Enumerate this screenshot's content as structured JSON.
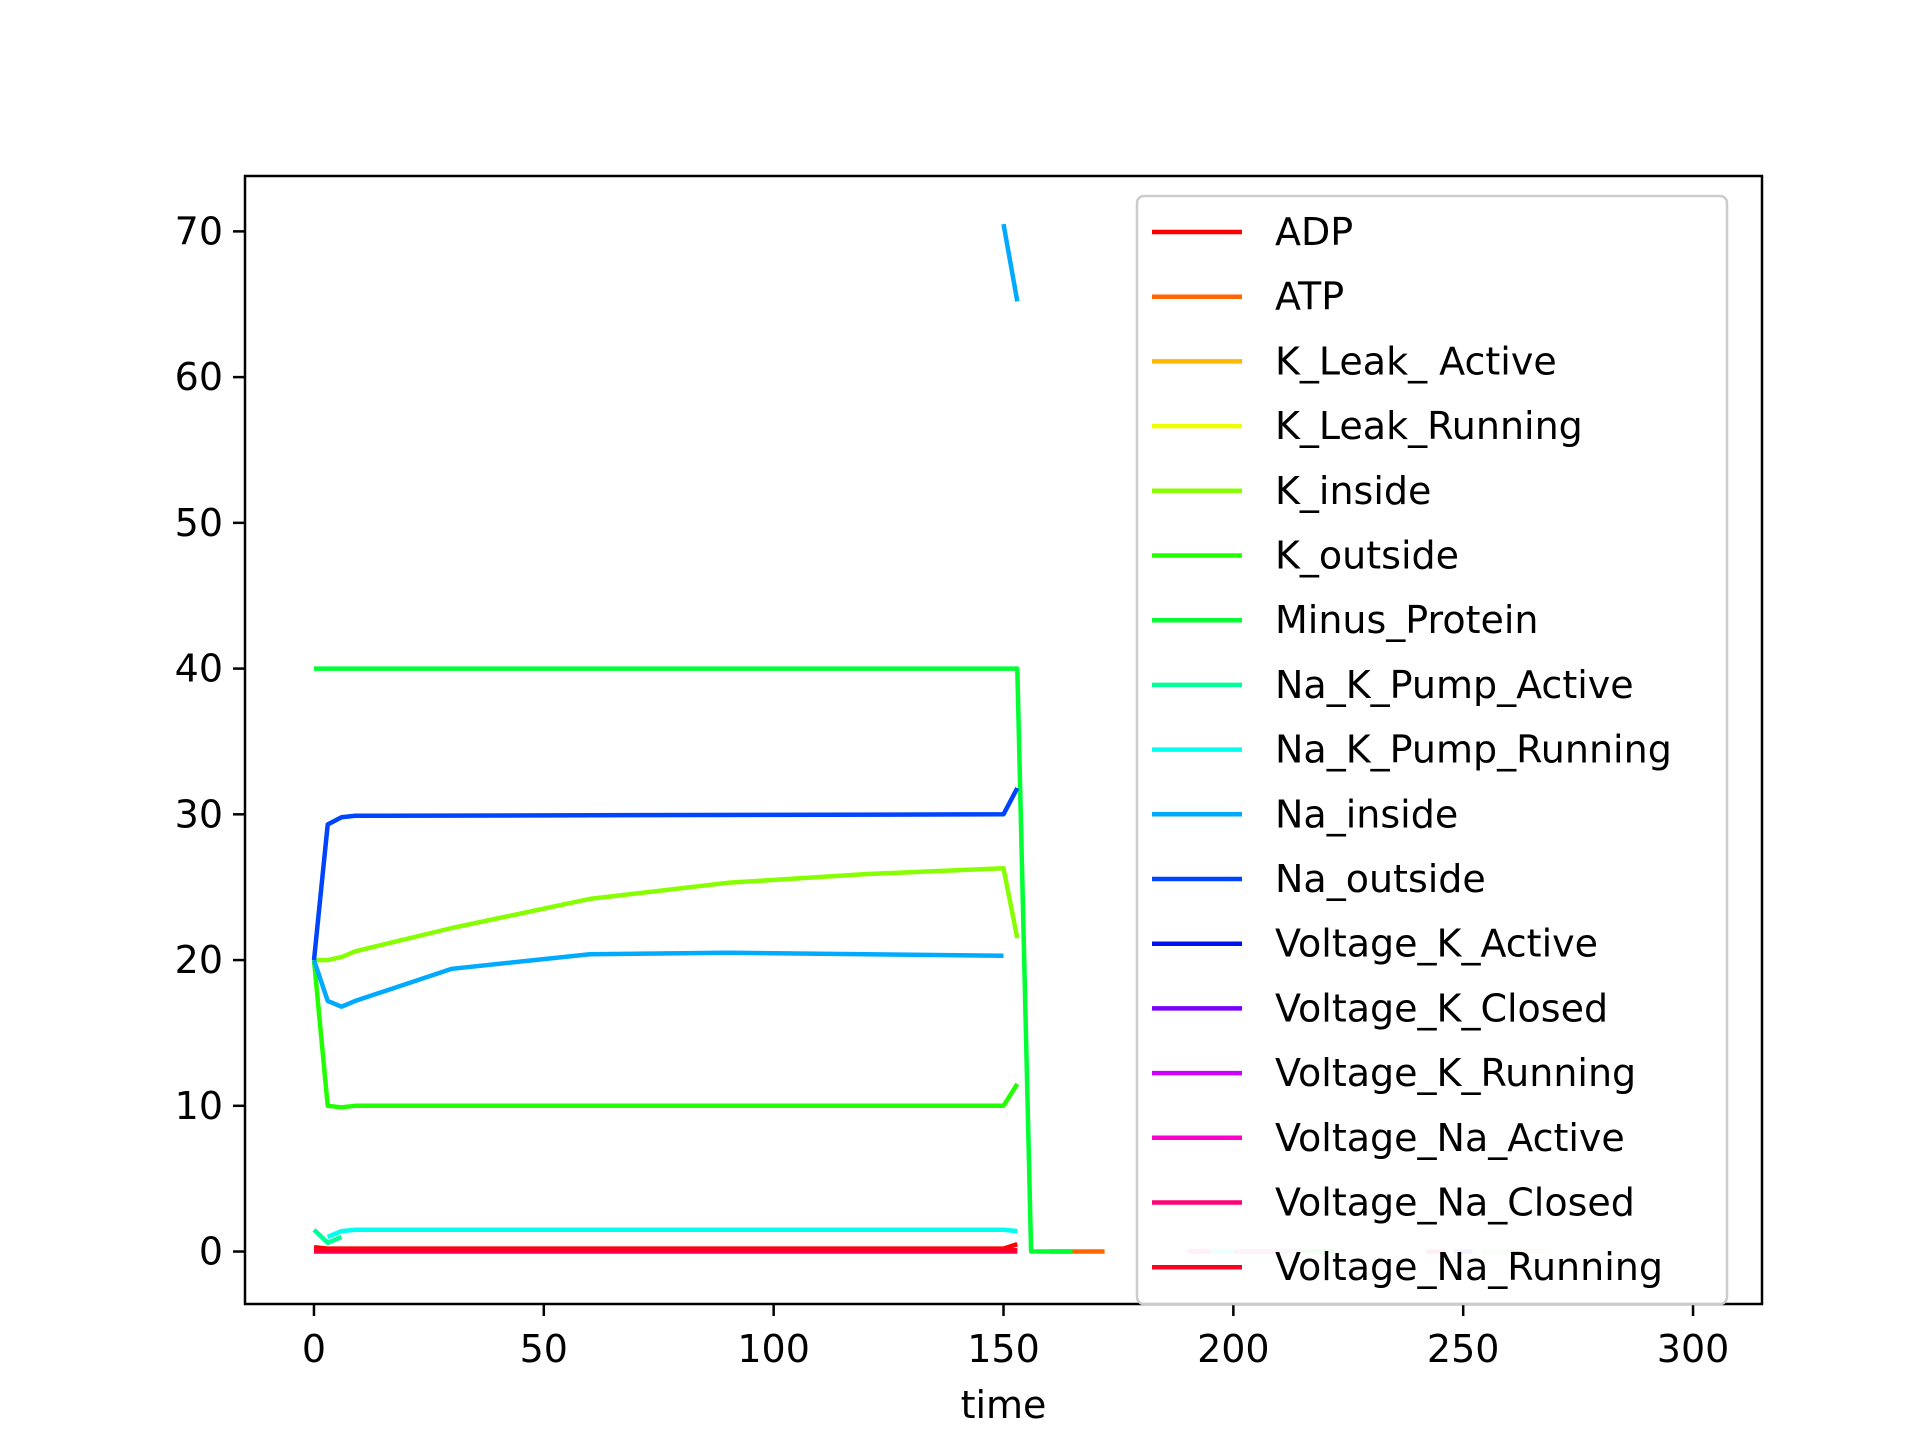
{
  "chart_data": {
    "type": "line",
    "title": "",
    "xlabel": "time",
    "ylabel": "",
    "xlim": [
      -15,
      315
    ],
    "ylim": [
      -3.6,
      73.8
    ],
    "xticks": [
      0,
      50,
      100,
      150,
      200,
      250,
      300
    ],
    "yticks": [
      0,
      10,
      20,
      30,
      40,
      50,
      60,
      70
    ],
    "grid": false,
    "legend_position": "top-right",
    "series": [
      {
        "name": "ADP",
        "color": "#ff0000",
        "x": [
          0,
          3,
          6,
          9,
          150,
          153
        ],
        "y": [
          0.3,
          0.2,
          0.2,
          0.2,
          0.2,
          0.5
        ]
      },
      {
        "name": "ATP",
        "color": "#ff6600",
        "x": [
          160,
          172
        ],
        "y": [
          0,
          0
        ]
      },
      {
        "name": "K_Leak_ Active",
        "color": "#ffb700",
        "x": [
          0,
          153
        ],
        "y": [
          0,
          0
        ]
      },
      {
        "name": "K_Leak_Running",
        "color": "#eeff00",
        "x": [
          0,
          153
        ],
        "y": [
          0,
          0
        ]
      },
      {
        "name": "K_inside",
        "color": "#88ff00",
        "x": [
          0,
          3,
          6,
          9,
          30,
          60,
          90,
          120,
          150,
          153
        ],
        "y": [
          20,
          20,
          20.2,
          20.6,
          22.2,
          24.2,
          25.3,
          25.9,
          26.3,
          21.5
        ]
      },
      {
        "name": "K_outside",
        "color": "#22ff00",
        "x": [
          0,
          3,
          6,
          9,
          150,
          153
        ],
        "y": [
          20,
          10,
          9.9,
          10,
          10,
          11.5
        ]
      },
      {
        "name": "Minus_Protein",
        "color": "#00ff33",
        "x": [
          0,
          150,
          153,
          156,
          165
        ],
        "y": [
          40,
          40,
          40,
          0,
          0
        ]
      },
      {
        "name": "Na_K_Pump_Active",
        "color": "#00ff99",
        "x": [
          0,
          3,
          6
        ],
        "y": [
          1.5,
          0.6,
          1
        ]
      },
      {
        "name": "Na_K_Pump_Running",
        "color": "#00ffee",
        "x": [
          3,
          6,
          9,
          150,
          153
        ],
        "y": [
          1,
          1.4,
          1.5,
          1.5,
          1.4
        ]
      },
      {
        "name": "Na_inside",
        "color": "#00aaff",
        "x": [
          0,
          3,
          6,
          9,
          30,
          60,
          90,
          120,
          150
        ],
        "y": [
          20,
          17.2,
          16.8,
          17.2,
          19.4,
          20.4,
          20.5,
          20.4,
          20.3
        ]
      },
      {
        "name": "Na_outside",
        "color": "#0044ff",
        "x": [
          0,
          3,
          6,
          9,
          150,
          153
        ],
        "y": [
          20,
          29.3,
          29.8,
          29.9,
          30,
          31.8
        ]
      },
      {
        "name": "Voltage_K_Active",
        "color": "#0011ee",
        "x": [],
        "y": []
      },
      {
        "name": "Voltage_K_Closed",
        "color": "#7700ff",
        "x": [],
        "y": []
      },
      {
        "name": "Voltage_K_Running",
        "color": "#cc00ff",
        "x": [],
        "y": []
      },
      {
        "name": "Voltage_Na_Active",
        "color": "#ff00cc",
        "x": [],
        "y": []
      },
      {
        "name": "Voltage_Na_Closed",
        "color": "#ff0077",
        "x": [
          0,
          153
        ],
        "y": [
          0,
          0
        ]
      },
      {
        "name": "Voltage_Na_Running",
        "color": "#ff0022",
        "x": [
          0,
          153
        ],
        "y": [
          0.1,
          0.1
        ]
      }
    ],
    "extra_segments": [
      {
        "color": "#00aaff",
        "x": [
          150,
          153
        ],
        "y": [
          70.5,
          65.2
        ]
      },
      {
        "color": "#ffaaee",
        "x": [
          190,
          195
        ],
        "y": [
          0,
          0
        ]
      },
      {
        "color": "#aaffff",
        "x": [
          195,
          200
        ],
        "y": [
          0,
          0
        ]
      },
      {
        "color": "#ffbbee",
        "x": [
          200,
          210
        ],
        "y": [
          0,
          0
        ]
      },
      {
        "color": "#eeccff",
        "x": [
          210,
          215
        ],
        "y": [
          0,
          0
        ]
      },
      {
        "color": "#bbffbb",
        "x": [
          215,
          222
        ],
        "y": [
          0,
          0
        ]
      },
      {
        "color": "#ffaacc",
        "x": [
          242,
          246
        ],
        "y": [
          0,
          0
        ]
      },
      {
        "color": "#bbbbff",
        "x": [
          248,
          252
        ],
        "y": [
          0,
          0
        ]
      },
      {
        "color": "#ccffcc",
        "x": [
          254,
          262
        ],
        "y": [
          0,
          0
        ]
      },
      {
        "color": "#ffeecc",
        "x": [
          262,
          268
        ],
        "y": [
          0,
          0
        ]
      }
    ]
  }
}
